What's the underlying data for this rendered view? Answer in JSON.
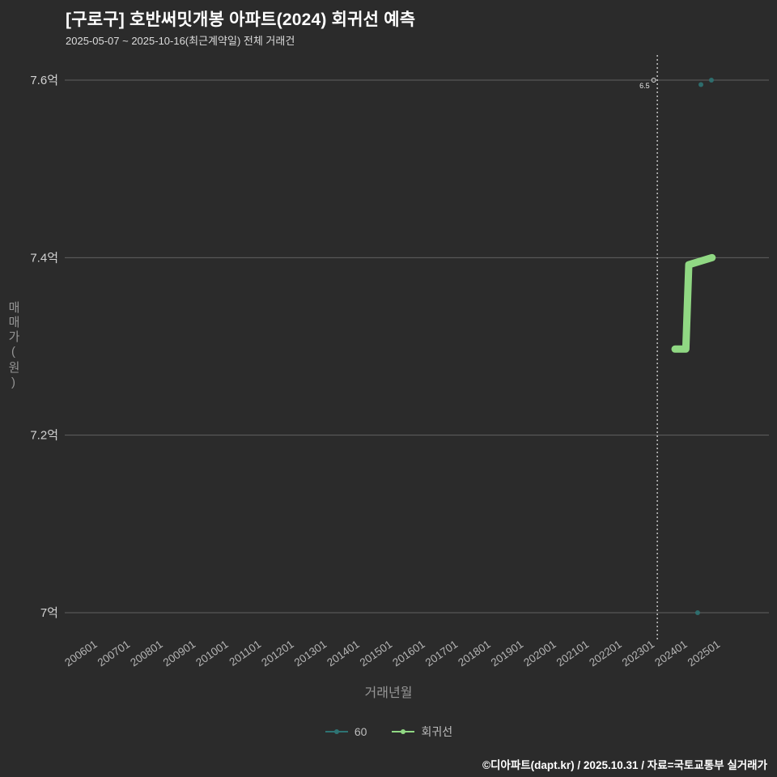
{
  "footer": {
    "text": "©디아파트(dapt.kr) / 2025.10.31 / 자료=국토교통부 실거래가"
  },
  "chart_data": {
    "type": "scatter",
    "title": "[구로구] 호반써밋개봉 아파트(2024) 회귀선 예측",
    "subtitle": "2025-05-07 ~ 2025-10-16(최근계약일) 전체 거래건",
    "xlabel": "거래년월",
    "ylabel": "매매가(원)",
    "grid": true,
    "legend_position": "bottom-center",
    "background_color": "#2b2b2b",
    "x_ticks": [
      "200601",
      "200701",
      "200801",
      "200901",
      "201001",
      "201101",
      "201201",
      "201301",
      "201401",
      "201501",
      "201601",
      "201701",
      "201801",
      "201901",
      "202001",
      "202101",
      "202201",
      "202301",
      "202401",
      "202501"
    ],
    "y_ticks": [
      {
        "value": 7.0,
        "label": "7억"
      },
      {
        "value": 7.2,
        "label": "7.2억"
      },
      {
        "value": 7.4,
        "label": "7.4억"
      },
      {
        "value": 7.6,
        "label": "7.6억"
      }
    ],
    "ylim": [
      6.93,
      7.64
    ],
    "y_unit": "억",
    "series": [
      {
        "name": "60",
        "type": "scatter",
        "color": "#2e7373",
        "points": [
          [
            2024.79,
            7.595
          ],
          [
            2025.11,
            7.6
          ],
          [
            2024.69,
            7.0
          ]
        ]
      },
      {
        "name": "회귀선",
        "type": "line",
        "color": "#90d883",
        "points": [
          [
            2024.0,
            7.297
          ],
          [
            2024.33,
            7.297
          ],
          [
            2024.42,
            7.392
          ],
          [
            2025.13,
            7.4
          ]
        ]
      }
    ],
    "annotation": {
      "t": 2023.3,
      "value": 7.6,
      "label": "6.5"
    },
    "vline": {
      "t": 2023.46,
      "style": "dotted",
      "color": "#d8d8d8"
    }
  }
}
